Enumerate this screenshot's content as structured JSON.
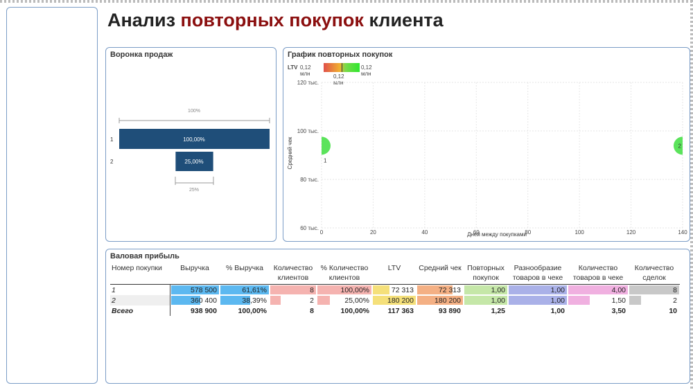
{
  "title": {
    "part1": "Анализ",
    "part2": "повторных покупок",
    "part3": "клиента"
  },
  "funnel": {
    "title": "Воронка продаж",
    "top_label": "100%",
    "bottom_label": "25%",
    "bars": [
      {
        "label": "1",
        "value": 100,
        "text": "100,00%"
      },
      {
        "label": "2",
        "value": 25,
        "text": "25,00%"
      }
    ],
    "bar_color": "#1f4e79"
  },
  "scatter": {
    "title": "График повторных покупок",
    "legend": {
      "name": "LTV",
      "min": "0,12 млн",
      "max": "0,12 млн",
      "mid": "0,12 млн"
    },
    "chart_data": {
      "type": "scatter",
      "xlabel": "Дней между покупками",
      "ylabel": "Средний чек",
      "xlim": [
        0,
        140
      ],
      "ylim": [
        60000,
        120000
      ],
      "xticks": [
        "0",
        "20",
        "40",
        "60",
        "80",
        "100",
        "120",
        "140"
      ],
      "yticks": [
        "60 тыс.",
        "80 тыс.",
        "100 тыс.",
        "120 тыс."
      ],
      "points": [
        {
          "label": "1",
          "x": 0,
          "y": 93890,
          "color": "#5be35b"
        },
        {
          "label": "2",
          "x": 140,
          "y": 93890,
          "color": "#5be35b"
        }
      ]
    }
  },
  "gross": {
    "title": "Валовая прибыль",
    "columns": [
      "Номер покупки",
      "Выручка",
      "% Выручка",
      "Количество клиентов",
      "% Количество клиентов",
      "LTV",
      "Средний чек",
      "Повторных покупок",
      "Разнообразие товаров в чеке",
      "Количество товаров в чеке",
      "Количество сделок"
    ],
    "bar_colors": [
      "",
      "#5cb8f0",
      "#5cb8f0",
      "#f5b3b0",
      "#f5b3b0",
      "#f5e07a",
      "#f4b084",
      "#c5e7a8",
      "#aab1e8",
      "#f0b0e0",
      "#c8c8c8"
    ],
    "rows": [
      {
        "cells": [
          "1",
          "578 500",
          "61,61%",
          "8",
          "100,00%",
          "72 313",
          "72 313",
          "1,00",
          "1,00",
          "4,00",
          "8"
        ],
        "fills": [
          0,
          1.0,
          1.0,
          1.0,
          1.0,
          0.4,
          0.78,
          1.0,
          1.0,
          1.0,
          1.0
        ]
      },
      {
        "cells": [
          "2",
          "360 400",
          "38,39%",
          "2",
          "25,00%",
          "180 200",
          "180 200",
          "1,00",
          "1,00",
          "1,50",
          "2"
        ],
        "fills": [
          0,
          0.62,
          0.62,
          0.25,
          0.25,
          1.0,
          1.0,
          1.0,
          1.0,
          0.38,
          0.25
        ]
      }
    ],
    "total": [
      "Всего",
      "938 900",
      "100,00%",
      "8",
      "100,00%",
      "117 363",
      "93 890",
      "1,25",
      "1,00",
      "3,50",
      "10"
    ]
  }
}
